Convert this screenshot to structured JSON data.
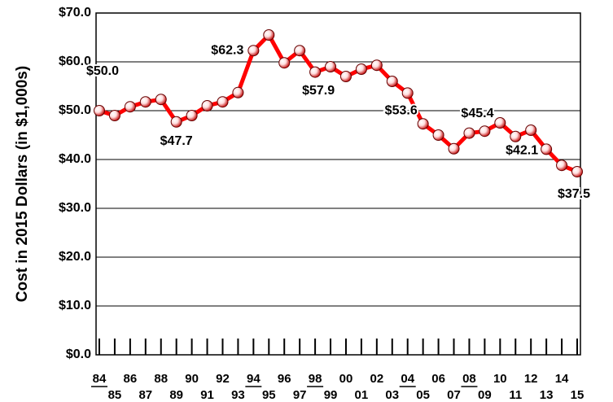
{
  "chart_data": {
    "type": "line",
    "y_label": "Cost in 2015 Dollars (in $1,000s)",
    "categories": [
      "84",
      "85",
      "86",
      "87",
      "88",
      "89",
      "90",
      "91",
      "92",
      "93",
      "94",
      "95",
      "96",
      "97",
      "98",
      "99",
      "00",
      "01",
      "02",
      "03",
      "04",
      "05",
      "06",
      "07",
      "08",
      "09",
      "10",
      "11",
      "12",
      "13",
      "14",
      "15"
    ],
    "series": [
      {
        "name": null,
        "color": "#ff0000",
        "values": [
          50.0,
          49.0,
          50.8,
          51.8,
          52.3,
          47.7,
          49.0,
          51.0,
          51.8,
          53.7,
          62.3,
          65.5,
          59.8,
          62.3,
          57.9,
          59.0,
          57.0,
          58.5,
          59.3,
          56.0,
          53.6,
          47.3,
          45.0,
          42.2,
          45.4,
          45.8,
          47.5,
          44.7,
          46.0,
          42.1,
          38.8,
          37.5
        ],
        "value_labels": [
          "$50.0",
          null,
          null,
          null,
          null,
          "$47.7",
          null,
          null,
          null,
          null,
          "$62.3",
          null,
          null,
          null,
          "$57.9",
          null,
          null,
          null,
          null,
          null,
          "$53.6",
          null,
          null,
          null,
          "$45.4",
          null,
          null,
          null,
          null,
          "$42.1",
          null,
          "$37.5"
        ]
      }
    ],
    "ylim": [
      0,
      70
    ],
    "yticks": [
      {
        "value": 0,
        "label": "$0.0"
      },
      {
        "value": 10,
        "label": "$10.0"
      },
      {
        "value": 20,
        "label": "$20.0"
      },
      {
        "value": 30,
        "label": "$30.0"
      },
      {
        "value": 40,
        "label": "$40.0"
      },
      {
        "value": 50,
        "label": "$50.0"
      },
      {
        "value": 60,
        "label": "$60.0"
      },
      {
        "value": 70,
        "label": "$70.0"
      }
    ],
    "grid": true
  }
}
